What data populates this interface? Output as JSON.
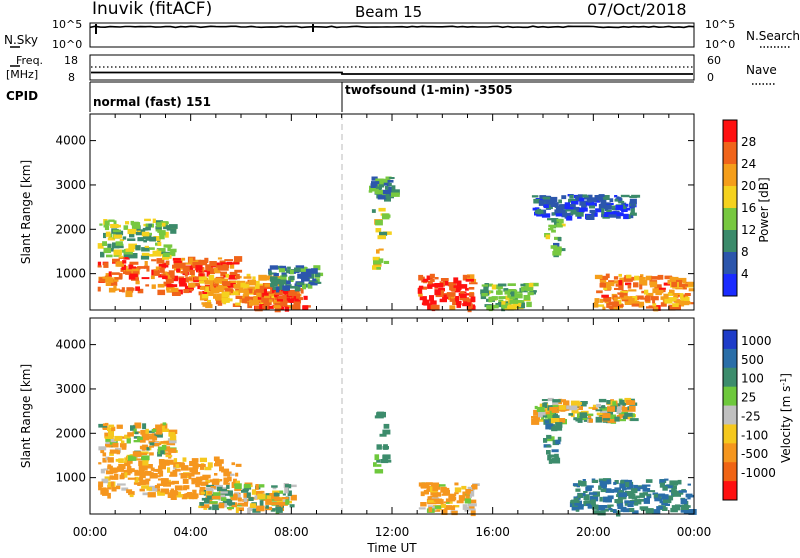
{
  "header": {
    "station": "Inuvik (fitACF)",
    "beam": "Beam 15",
    "date": "07/Oct/2018"
  },
  "sky_panel": {
    "left_label": "N.Sky",
    "right_label": "N.Search",
    "left_ticks": [
      "10^5",
      "10^0"
    ],
    "right_ticks": [
      "10^5",
      "10^0"
    ]
  },
  "freq_panel": {
    "left_label_1": "Freq.",
    "left_label_2": "[MHz]",
    "left_ticks": [
      "18",
      "8"
    ],
    "right_label": "Nave",
    "right_ticks": [
      "60",
      "0"
    ]
  },
  "cpid": {
    "label": "CPID",
    "segments": [
      {
        "start": "00:00",
        "text": "normal (fast) 151"
      },
      {
        "start": "10:00",
        "text": "twofsound (1-min) -3505"
      }
    ]
  },
  "power_panel": {
    "ylabel": "Slant Range [km]",
    "yticks": [
      "1000",
      "2000",
      "3000",
      "4000"
    ],
    "colorbar_label": "Power [dB]",
    "colorbar_ticks": [
      "4",
      "8",
      "12",
      "16",
      "20",
      "24",
      "28"
    ],
    "colors": [
      "#1a2bff",
      "#2c56ac",
      "#3b8a6a",
      "#77c840",
      "#f5d21e",
      "#f59e1a",
      "#f0641a",
      "#ff1010"
    ]
  },
  "velocity_panel": {
    "ylabel": "Slant Range [km]",
    "yticks": [
      "1000",
      "2000",
      "3000",
      "4000"
    ],
    "colorbar_label": "Velocity [m s",
    "colorbar_sup": "-1",
    "colorbar_label_end": "]",
    "colorbar_ticks": [
      "1000",
      "500",
      "100",
      "25",
      "-25",
      "-100",
      "-500",
      "-1000"
    ],
    "colors": [
      "#1e3cc8",
      "#2a6ea8",
      "#3c8c6c",
      "#6ec83c",
      "#c0c0c0",
      "#f5c81e",
      "#f5961e",
      "#f06414",
      "#ff1010"
    ]
  },
  "x_axis": {
    "ticks": [
      "00:00",
      "04:00",
      "08:00",
      "12:00",
      "16:00",
      "20:00",
      "00:00"
    ],
    "label": "Time UT"
  },
  "chart_data": [
    {
      "type": "line",
      "panel": "N.Sky / N.Search",
      "yscale": "log",
      "ylim": [
        1,
        100000
      ],
      "x_range": [
        "00:00",
        "24:00"
      ],
      "series": [
        {
          "name": "N.Sky",
          "style": "solid",
          "level_log10": 4.2
        },
        {
          "name": "N.Search",
          "style": "dotted",
          "level_log10": 4.2
        }
      ]
    },
    {
      "type": "line",
      "panel": "Freq / Nave",
      "series": [
        {
          "name": "Freq.",
          "style": "solid",
          "points": [
            [
              "00:00",
              10
            ],
            [
              "10:00",
              10
            ],
            [
              "10:00",
              9.6
            ],
            [
              "24:00",
              9.6
            ]
          ]
        },
        {
          "name": "Nave",
          "style": "dotted",
          "points": [
            [
              "00:00",
              30
            ],
            [
              "24:00",
              30
            ]
          ]
        }
      ],
      "freq_ylim": [
        8,
        18
      ],
      "nave_ylim": [
        0,
        60
      ]
    },
    {
      "type": "heatmap",
      "panel": "Power",
      "ylabel": "Slant Range [km]",
      "xlabel": "Time UT",
      "xlim": [
        0,
        24
      ],
      "ylim": [
        180,
        4600
      ],
      "clim": [
        0,
        30
      ],
      "regions": [
        {
          "t": [
            0.3,
            5.8
          ],
          "r": [
            600,
            1400
          ],
          "power": 26
        },
        {
          "t": [
            0.3,
            3.2
          ],
          "r": [
            1400,
            2250
          ],
          "power": 14
        },
        {
          "t": [
            4.3,
            7.5
          ],
          "r": [
            300,
            1000
          ],
          "power": 22
        },
        {
          "t": [
            6.5,
            8.5
          ],
          "r": [
            250,
            700
          ],
          "power": 28
        },
        {
          "t": [
            7.0,
            9.0
          ],
          "r": [
            700,
            1200
          ],
          "power": 10
        },
        {
          "t": [
            11.2,
            11.7
          ],
          "r": [
            1100,
            2500
          ],
          "power": 16
        },
        {
          "t": [
            11.0,
            12.0
          ],
          "r": [
            2700,
            3200
          ],
          "power": 10
        },
        {
          "t": [
            13.0,
            15.2
          ],
          "r": [
            250,
            1000
          ],
          "power": 28
        },
        {
          "t": [
            15.5,
            17.5
          ],
          "r": [
            250,
            800
          ],
          "power": 14
        },
        {
          "t": [
            17.5,
            21.5
          ],
          "r": [
            2300,
            2800
          ],
          "power": 6
        },
        {
          "t": [
            18.0,
            18.6
          ],
          "r": [
            1400,
            2300
          ],
          "power": 12
        },
        {
          "t": [
            20.0,
            23.8
          ],
          "r": [
            250,
            1000
          ],
          "power": 24
        }
      ]
    },
    {
      "type": "heatmap",
      "panel": "Velocity",
      "ylabel": "Slant Range [km]",
      "xlabel": "Time UT",
      "xlim": [
        0,
        24
      ],
      "ylim": [
        180,
        4600
      ],
      "clim": [
        -1000,
        1000
      ],
      "regions": [
        {
          "t": [
            0.3,
            5.8
          ],
          "r": [
            600,
            1500
          ],
          "velocity": -250
        },
        {
          "t": [
            0.3,
            3.2
          ],
          "r": [
            1500,
            2250
          ],
          "velocity": -100
        },
        {
          "t": [
            4.3,
            8.0
          ],
          "r": [
            300,
            900
          ],
          "velocity": 0
        },
        {
          "t": [
            11.2,
            11.7
          ],
          "r": [
            1100,
            2500
          ],
          "velocity": 300
        },
        {
          "t": [
            13.0,
            15.2
          ],
          "r": [
            250,
            900
          ],
          "velocity": -200
        },
        {
          "t": [
            17.5,
            21.5
          ],
          "r": [
            2300,
            2800
          ],
          "velocity": 0
        },
        {
          "t": [
            18.0,
            18.6
          ],
          "r": [
            1400,
            2300
          ],
          "velocity": 300
        },
        {
          "t": [
            19.0,
            23.8
          ],
          "r": [
            250,
            1000
          ],
          "velocity": 500
        }
      ]
    }
  ]
}
